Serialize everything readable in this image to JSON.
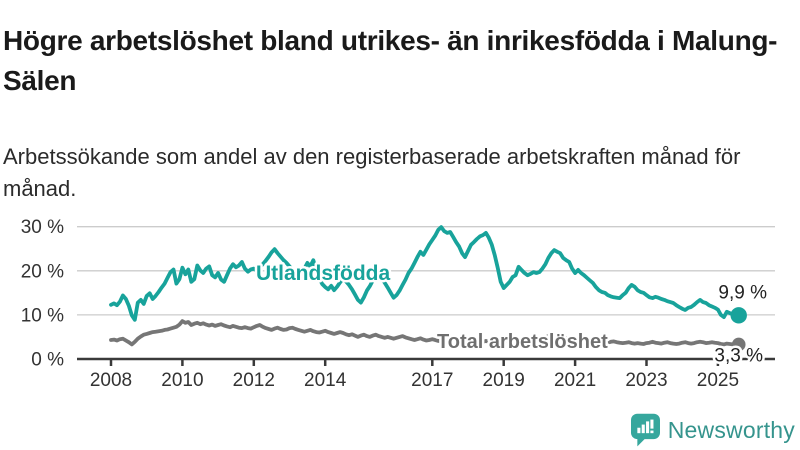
{
  "title": "Högre arbetslöshet bland utrikes- än inrikesfödda i Malung-Sälen",
  "subtitle": "Arbetssökande som andel av den registerbaserade arbetskraften månad för månad.",
  "branding": {
    "logo_text": "Newsworthy",
    "logo_icon": "newsworthy-speech-bubble-bar-chart-icon",
    "logo_teal": "#36A79D",
    "logo_text_color": "#35948D"
  },
  "chart_data": {
    "type": "line",
    "title": "Högre arbetslöshet bland utrikes- än inrikesfödda i Malung-Sälen",
    "subtitle": "Arbetssökande som andel av den registerbaserade arbetskraften månad för månad.",
    "x_start_year": 2008,
    "points_per_year": 12,
    "x_ticks": [
      2008,
      2010,
      2012,
      2014,
      2017,
      2019,
      2021,
      2023,
      2025
    ],
    "x_tick_labels": [
      "2008",
      "2010",
      "2012",
      "2014",
      "2017",
      "2019",
      "2021",
      "2023",
      "2025"
    ],
    "ylim": [
      0,
      30
    ],
    "y_ticks": [
      0,
      10,
      20,
      30
    ],
    "y_tick_labels": [
      "0 %",
      "10 %",
      "20 %",
      "30 %"
    ],
    "grid": true,
    "legend": "inline-labels",
    "colors": {
      "grid": "#cccccc",
      "axis": "#3a3a3a",
      "tick_label": "#333333",
      "end_value_label": "#222222"
    },
    "series": [
      {
        "name": "Utlandsfödda",
        "color": "#18A39B",
        "label_color": "#18A39B",
        "end_label": "9,9 %",
        "end_value": 9.9,
        "values": [
          12.3,
          12.6,
          12.2,
          13.0,
          14.4,
          13.6,
          12.1,
          9.9,
          8.9,
          12.8,
          13.4,
          12.5,
          14.3,
          14.9,
          13.6,
          14.3,
          15.2,
          16.2,
          17.1,
          18.4,
          19.7,
          20.3,
          17.1,
          18.1,
          20.7,
          19.2,
          20.3,
          17.5,
          18.1,
          21.2,
          20.1,
          19.5,
          20.5,
          21.0,
          19.0,
          18.5,
          19.5,
          18.0,
          17.5,
          19.0,
          20.5,
          21.5,
          20.8,
          21.2,
          22.0,
          20.5,
          19.8,
          20.3,
          20.5,
          20.0,
          20.8,
          21.5,
          22.3,
          23.2,
          24.2,
          24.9,
          24.0,
          23.2,
          22.4,
          21.8,
          21.0,
          20.2,
          19.4,
          18.8,
          19.6,
          20.5,
          21.8,
          21.0,
          22.4,
          20.0,
          18.3,
          17.0,
          16.3,
          15.8,
          16.6,
          15.6,
          16.4,
          17.4,
          18.3,
          17.6,
          16.8,
          15.8,
          14.6,
          13.4,
          12.8,
          14.0,
          15.5,
          16.5,
          17.8,
          18.5,
          19.0,
          18.2,
          17.3,
          16.2,
          15.0,
          13.9,
          14.5,
          15.5,
          16.8,
          18.0,
          19.5,
          20.5,
          21.8,
          23.1,
          24.3,
          23.6,
          24.8,
          26.0,
          27.0,
          28.0,
          29.3,
          29.9,
          29.0,
          28.6,
          28.8,
          27.7,
          26.5,
          25.5,
          24.0,
          23.1,
          24.5,
          25.9,
          26.5,
          27.2,
          27.8,
          28.1,
          28.6,
          27.5,
          25.9,
          23.5,
          20.6,
          17.5,
          16.1,
          16.8,
          17.5,
          18.6,
          19.0,
          20.9,
          20.2,
          19.5,
          19.0,
          19.3,
          19.7,
          19.5,
          19.7,
          20.5,
          21.5,
          22.9,
          24.0,
          24.7,
          24.3,
          24.0,
          22.9,
          22.4,
          22.0,
          20.5,
          19.5,
          20.2,
          19.5,
          19.0,
          18.4,
          17.8,
          17.2,
          16.3,
          15.6,
          15.2,
          15.0,
          14.5,
          14.2,
          14.0,
          13.9,
          13.8,
          14.5,
          15.0,
          16.1,
          16.8,
          16.4,
          15.6,
          15.2,
          15.0,
          14.5,
          14.0,
          13.8,
          14.1,
          13.9,
          13.6,
          13.4,
          13.1,
          12.9,
          12.7,
          12.2,
          11.8,
          11.4,
          11.1,
          11.6,
          11.8,
          12.3,
          12.9,
          13.4,
          12.9,
          12.7,
          12.2,
          11.9,
          11.6,
          11.2,
          10.0,
          9.5,
          10.7,
          10.4,
          10.1,
          10.0,
          9.9
        ]
      },
      {
        "name": "Total arbetslöshet",
        "color": "#767676",
        "label_color": "#6F6F6F",
        "end_label": "3,3 %",
        "end_value": 3.3,
        "values": [
          4.3,
          4.4,
          4.2,
          4.5,
          4.6,
          4.2,
          3.8,
          3.3,
          3.9,
          4.6,
          5.1,
          5.5,
          5.7,
          5.9,
          6.1,
          6.2,
          6.3,
          6.4,
          6.6,
          6.7,
          6.9,
          7.1,
          7.3,
          7.8,
          8.6,
          8.2,
          8.4,
          7.7,
          8.0,
          8.2,
          7.9,
          8.1,
          7.8,
          7.6,
          7.8,
          7.5,
          7.7,
          7.9,
          7.6,
          7.4,
          7.2,
          7.5,
          7.3,
          7.1,
          7.0,
          7.2,
          7.0,
          6.9,
          7.2,
          7.5,
          7.7,
          7.3,
          7.0,
          6.8,
          6.6,
          6.9,
          7.1,
          6.8,
          6.6,
          6.7,
          7.0,
          7.1,
          6.8,
          6.6,
          6.4,
          6.2,
          6.4,
          6.6,
          6.3,
          6.1,
          6.0,
          6.2,
          6.4,
          6.1,
          5.9,
          5.7,
          5.9,
          6.1,
          5.9,
          5.6,
          5.4,
          5.6,
          5.3,
          5.0,
          5.3,
          5.5,
          5.2,
          5.0,
          5.3,
          5.5,
          5.2,
          5.0,
          4.8,
          5.0,
          4.8,
          4.6,
          4.8,
          5.0,
          5.2,
          4.9,
          4.7,
          4.5,
          4.3,
          4.5,
          4.7,
          4.4,
          4.2,
          4.3,
          4.5,
          4.3,
          4.1,
          4.0,
          4.2,
          4.4,
          4.2,
          4.0,
          3.9,
          4.1,
          3.9,
          3.8,
          4.0,
          4.2,
          4.0,
          3.8,
          3.7,
          3.9,
          4.1,
          3.9,
          3.7,
          3.6,
          3.8,
          3.9,
          4.1,
          4.2,
          4.0,
          3.9,
          4.1,
          4.3,
          4.1,
          3.9,
          3.8,
          4.0,
          4.2,
          4.4,
          4.6,
          4.7,
          4.9,
          5.2,
          5.4,
          5.3,
          5.1,
          5.0,
          4.8,
          4.7,
          4.6,
          4.5,
          4.7,
          4.8,
          4.6,
          4.4,
          4.3,
          4.1,
          4.0,
          3.9,
          3.8,
          3.9,
          3.8,
          3.7,
          3.9,
          4.0,
          3.8,
          3.7,
          3.6,
          3.7,
          3.8,
          3.6,
          3.5,
          3.6,
          3.5,
          3.4,
          3.6,
          3.7,
          3.9,
          3.7,
          3.6,
          3.5,
          3.7,
          3.8,
          3.6,
          3.5,
          3.4,
          3.5,
          3.7,
          3.8,
          3.6,
          3.5,
          3.6,
          3.8,
          3.9,
          3.8,
          3.6,
          3.7,
          3.8,
          3.7,
          3.6,
          3.4,
          3.3,
          3.5,
          3.4,
          3.3,
          3.3,
          3.3
        ]
      }
    ]
  }
}
